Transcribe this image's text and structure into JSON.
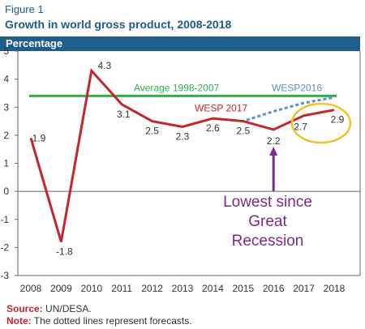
{
  "figure_label": "Figure 1",
  "title": "Growth in world gross product, 2008-2018",
  "band_label": "Percentage",
  "source": {
    "key": "Source:",
    "value": "UN/DESA."
  },
  "note": {
    "key": "Note:",
    "value": "The dotted lines represent forecasts."
  },
  "colors": {
    "wesp2017": "#c4262e",
    "average": "#2db24a",
    "wesp2016": "#5b8fc9",
    "highlight_circle": "#f2c12e",
    "arrow": "#7a2a8e",
    "callout_text": "#7a2a8e",
    "band": "#1e5d8c"
  },
  "chart_data": {
    "type": "line",
    "x": [
      "2008",
      "2009",
      "2010",
      "2011",
      "2012",
      "2013",
      "2014",
      "2015",
      "2016",
      "2017",
      "2018"
    ],
    "ylim": [
      -3,
      5
    ],
    "yticks": [
      "5",
      "4",
      "3",
      "2",
      "1",
      "0",
      "-1",
      "-2",
      "-3"
    ],
    "ylabel": "Percentage",
    "series": [
      {
        "name": "WESP 2017",
        "values": [
          1.9,
          -1.8,
          4.3,
          3.1,
          2.5,
          2.3,
          2.6,
          2.5,
          2.2,
          2.7,
          2.9
        ],
        "labels": [
          "1.9",
          "-1.8",
          "4.3",
          "3.1",
          "2.5",
          "2.3",
          "2.6",
          "2.5",
          "2.2",
          "2.7",
          "2.9"
        ]
      },
      {
        "name": "WESP2016",
        "style": "dotted",
        "x": [
          "2014",
          "2015",
          "2016",
          "2017",
          "2018"
        ],
        "values": [
          2.6,
          2.5,
          2.85,
          3.15,
          3.35
        ]
      },
      {
        "name": "Average 1998-2007",
        "constant": 3.4
      }
    ],
    "annotations": [
      "Lowest since",
      "Great",
      "Recession"
    ],
    "grid": false
  }
}
